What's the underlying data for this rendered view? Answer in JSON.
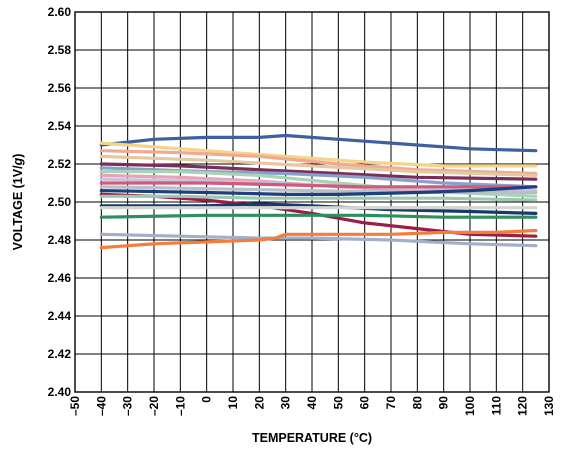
{
  "chart_data": {
    "type": "line",
    "title": "",
    "xlabel": "TEMPERATURE (°C)",
    "ylabel_prefix": "VOLTAGE (1V/",
    "ylabel_italic": "g",
    "ylabel_suffix": ")",
    "xlim": [
      -50,
      130
    ],
    "ylim": [
      2.4,
      2.6
    ],
    "x_ticks": [
      -50,
      -40,
      -30,
      -20,
      -10,
      0,
      10,
      20,
      30,
      40,
      50,
      60,
      70,
      80,
      90,
      100,
      110,
      120,
      130
    ],
    "x_tick_labels": [
      "–50",
      "–40",
      "–30",
      "–20",
      "–10",
      "0",
      "10",
      "20",
      "30",
      "40",
      "50",
      "60",
      "70",
      "80",
      "90",
      "100",
      "110",
      "120",
      "130"
    ],
    "y_ticks": [
      2.4,
      2.42,
      2.44,
      2.46,
      2.48,
      2.5,
      2.52,
      2.54,
      2.56,
      2.58,
      2.6
    ],
    "y_tick_labels": [
      "2.40",
      "2.42",
      "2.44",
      "2.46",
      "2.48",
      "2.50",
      "2.52",
      "2.54",
      "2.56",
      "2.58",
      "2.60"
    ],
    "grid": true,
    "series": [
      {
        "color": "#3f5f9f",
        "points": [
          [
            -40,
            2.53
          ],
          [
            -20,
            2.533
          ],
          [
            0,
            2.534
          ],
          [
            20,
            2.534
          ],
          [
            30,
            2.535
          ],
          [
            50,
            2.533
          ],
          [
            80,
            2.53
          ],
          [
            100,
            2.528
          ],
          [
            125,
            2.527
          ]
        ]
      },
      {
        "color": "#f3d48a",
        "points": [
          [
            -40,
            2.531
          ],
          [
            -20,
            2.529
          ],
          [
            0,
            2.527
          ],
          [
            30,
            2.524
          ],
          [
            60,
            2.521
          ],
          [
            90,
            2.519
          ],
          [
            125,
            2.519
          ]
        ]
      },
      {
        "color": "#f1a993",
        "points": [
          [
            -40,
            2.527
          ],
          [
            -10,
            2.526
          ],
          [
            20,
            2.524
          ],
          [
            50,
            2.52
          ],
          [
            80,
            2.517
          ],
          [
            125,
            2.515
          ]
        ]
      },
      {
        "color": "#e6c8a0",
        "points": [
          [
            -40,
            2.524
          ],
          [
            0,
            2.522
          ],
          [
            40,
            2.519
          ],
          [
            80,
            2.516
          ],
          [
            125,
            2.514
          ]
        ]
      },
      {
        "color": "#7a2f58",
        "points": [
          [
            -40,
            2.52
          ],
          [
            -10,
            2.519
          ],
          [
            20,
            2.517
          ],
          [
            50,
            2.515
          ],
          [
            80,
            2.513
          ],
          [
            125,
            2.512
          ]
        ]
      },
      {
        "color": "#8aa0cc",
        "points": [
          [
            -40,
            2.518
          ],
          [
            -20,
            2.517
          ],
          [
            0,
            2.516
          ],
          [
            30,
            2.515
          ],
          [
            60,
            2.513
          ],
          [
            90,
            2.51
          ],
          [
            125,
            2.508
          ]
        ]
      },
      {
        "color": "#a8d3b4",
        "points": [
          [
            -40,
            2.516
          ],
          [
            -10,
            2.516
          ],
          [
            20,
            2.514
          ],
          [
            50,
            2.51
          ],
          [
            80,
            2.506
          ],
          [
            125,
            2.503
          ]
        ]
      },
      {
        "color": "#e5a2b8",
        "points": [
          [
            -40,
            2.514
          ],
          [
            -10,
            2.513
          ],
          [
            20,
            2.511
          ],
          [
            50,
            2.508
          ],
          [
            80,
            2.506
          ],
          [
            125,
            2.505
          ]
        ]
      },
      {
        "color": "#c8c3df",
        "points": [
          [
            -40,
            2.512
          ],
          [
            0,
            2.511
          ],
          [
            40,
            2.509
          ],
          [
            80,
            2.507
          ],
          [
            125,
            2.506
          ]
        ]
      },
      {
        "color": "#cf5a7a",
        "points": [
          [
            -40,
            2.51
          ],
          [
            0,
            2.51
          ],
          [
            30,
            2.509
          ],
          [
            60,
            2.508
          ],
          [
            90,
            2.508
          ],
          [
            125,
            2.508
          ]
        ]
      },
      {
        "color": "#b7bfc8",
        "points": [
          [
            -40,
            2.508
          ],
          [
            0,
            2.507
          ],
          [
            40,
            2.506
          ],
          [
            80,
            2.505
          ],
          [
            125,
            2.505
          ]
        ]
      },
      {
        "color": "#1e3f7d",
        "points": [
          [
            -40,
            2.506
          ],
          [
            0,
            2.505
          ],
          [
            30,
            2.504
          ],
          [
            50,
            2.504
          ],
          [
            80,
            2.505
          ],
          [
            100,
            2.506
          ],
          [
            125,
            2.508
          ]
        ]
      },
      {
        "color": "#9b1f44",
        "points": [
          [
            -40,
            2.504
          ],
          [
            -20,
            2.503
          ],
          [
            0,
            2.501
          ],
          [
            20,
            2.498
          ],
          [
            40,
            2.494
          ],
          [
            60,
            2.489
          ],
          [
            80,
            2.486
          ],
          [
            100,
            2.483
          ],
          [
            125,
            2.482
          ]
        ]
      },
      {
        "color": "#9cc9b0",
        "points": [
          [
            -40,
            2.503
          ],
          [
            -10,
            2.503
          ],
          [
            20,
            2.502
          ],
          [
            50,
            2.502
          ],
          [
            90,
            2.502
          ],
          [
            125,
            2.501
          ]
        ]
      },
      {
        "color": "#19386f",
        "points": [
          [
            -40,
            2.498
          ],
          [
            0,
            2.498
          ],
          [
            20,
            2.499
          ],
          [
            40,
            2.498
          ],
          [
            70,
            2.496
          ],
          [
            100,
            2.495
          ],
          [
            125,
            2.494
          ]
        ]
      },
      {
        "color": "#cfd7ce",
        "points": [
          [
            -40,
            2.497
          ],
          [
            0,
            2.497
          ],
          [
            40,
            2.497
          ],
          [
            80,
            2.497
          ],
          [
            125,
            2.497
          ]
        ]
      },
      {
        "color": "#2e8f5e",
        "points": [
          [
            -40,
            2.492
          ],
          [
            0,
            2.493
          ],
          [
            30,
            2.493
          ],
          [
            60,
            2.493
          ],
          [
            90,
            2.492
          ],
          [
            125,
            2.492
          ]
        ]
      },
      {
        "color": "#a3aec9",
        "points": [
          [
            -40,
            2.483
          ],
          [
            -10,
            2.482
          ],
          [
            20,
            2.481
          ],
          [
            40,
            2.481
          ],
          [
            70,
            2.48
          ],
          [
            100,
            2.478
          ],
          [
            125,
            2.477
          ]
        ]
      },
      {
        "color": "#f47c3c",
        "points": [
          [
            -40,
            2.476
          ],
          [
            -20,
            2.478
          ],
          [
            0,
            2.479
          ],
          [
            20,
            2.48
          ],
          [
            26,
            2.481
          ],
          [
            30,
            2.483
          ],
          [
            50,
            2.483
          ],
          [
            70,
            2.483
          ],
          [
            90,
            2.484
          ],
          [
            110,
            2.484
          ],
          [
            125,
            2.485
          ]
        ]
      }
    ]
  }
}
